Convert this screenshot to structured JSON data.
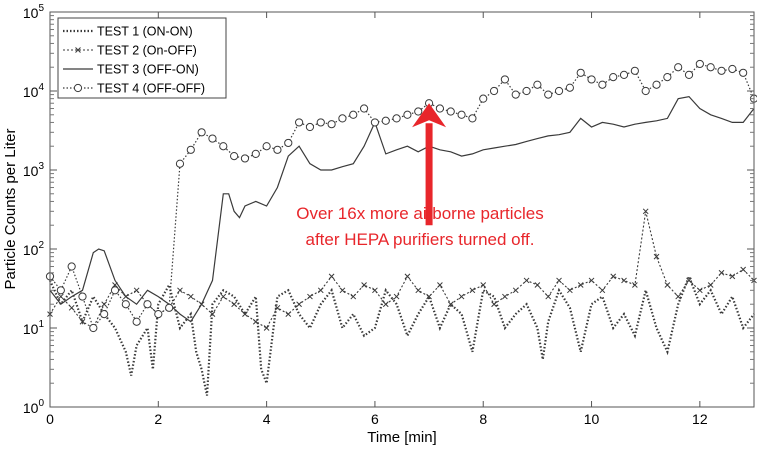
{
  "chart_data": {
    "type": "line",
    "xlabel": "Time [min]",
    "ylabel": "Particle Counts per Liter",
    "xlim": [
      0,
      13
    ],
    "ylim": [
      1,
      100000
    ],
    "yscale": "log",
    "grid": false,
    "legend_position": "top-left",
    "x_ticks": [
      "0",
      "2",
      "4",
      "6",
      "8",
      "10",
      "12"
    ],
    "y_ticks": [
      {
        "base": "10",
        "exp": "0"
      },
      {
        "base": "10",
        "exp": "1"
      },
      {
        "base": "10",
        "exp": "2"
      },
      {
        "base": "10",
        "exp": "3"
      },
      {
        "base": "10",
        "exp": "4"
      },
      {
        "base": "10",
        "exp": "5"
      }
    ],
    "annotation": {
      "lines": [
        "Over 16x more airborne particles",
        "after HEPA purifiers turned off."
      ],
      "color": "#e8262b",
      "arrow_x": 7.0,
      "arrow_y_from": 200,
      "arrow_y_to": 7000
    },
    "series": [
      {
        "name": "TEST 1 (ON-ON)",
        "style": "dotted",
        "x": [
          0.0,
          0.2,
          0.4,
          0.6,
          0.8,
          1.0,
          1.2,
          1.4,
          1.5,
          1.6,
          1.8,
          1.9,
          2.0,
          2.2,
          2.4,
          2.6,
          2.7,
          2.8,
          2.9,
          3.0,
          3.2,
          3.4,
          3.6,
          3.8,
          3.9,
          4.0,
          4.2,
          4.4,
          4.6,
          4.8,
          5.0,
          5.2,
          5.4,
          5.6,
          5.8,
          6.0,
          6.2,
          6.4,
          6.6,
          6.8,
          7.0,
          7.2,
          7.4,
          7.6,
          7.8,
          8.0,
          8.2,
          8.4,
          8.6,
          8.8,
          9.0,
          9.1,
          9.2,
          9.4,
          9.6,
          9.8,
          10.0,
          10.2,
          10.4,
          10.6,
          10.8,
          11.0,
          11.2,
          11.4,
          11.6,
          11.8,
          12.0,
          12.2,
          12.4,
          12.6,
          12.8,
          13.0
        ],
        "y": [
          40,
          20,
          30,
          12,
          25,
          15,
          10,
          5,
          2.5,
          6,
          10,
          3,
          20,
          35,
          10,
          15,
          5,
          3,
          1.4,
          20,
          30,
          25,
          15,
          25,
          3,
          2,
          25,
          30,
          15,
          10,
          20,
          30,
          10,
          15,
          8,
          10,
          30,
          20,
          8,
          15,
          25,
          10,
          20,
          15,
          5,
          30,
          25,
          10,
          15,
          20,
          10,
          4,
          12,
          30,
          18,
          5,
          20,
          25,
          10,
          15,
          8,
          30,
          10,
          5,
          20,
          45,
          20,
          30,
          15,
          25,
          10,
          15
        ]
      },
      {
        "name": "TEST 2 (On-OFF)",
        "style": "dashed-x",
        "x": [
          0.0,
          0.2,
          0.4,
          0.6,
          0.8,
          1.0,
          1.2,
          1.4,
          1.6,
          1.8,
          2.0,
          2.2,
          2.4,
          2.6,
          2.8,
          3.0,
          3.2,
          3.4,
          3.6,
          3.8,
          4.0,
          4.2,
          4.4,
          4.6,
          4.8,
          5.0,
          5.2,
          5.4,
          5.6,
          5.8,
          6.0,
          6.2,
          6.4,
          6.6,
          6.8,
          7.0,
          7.2,
          7.4,
          7.6,
          7.8,
          8.0,
          8.2,
          8.4,
          8.6,
          8.8,
          9.0,
          9.2,
          9.4,
          9.6,
          9.8,
          10.0,
          10.2,
          10.4,
          10.6,
          10.8,
          11.0,
          11.2,
          11.4,
          11.6,
          11.8,
          12.0,
          12.2,
          12.4,
          12.6,
          12.8,
          13.0
        ],
        "y": [
          15,
          25,
          18,
          12,
          10,
          20,
          35,
          25,
          30,
          20,
          15,
          18,
          30,
          25,
          20,
          15,
          25,
          20,
          15,
          12,
          10,
          18,
          15,
          20,
          25,
          30,
          45,
          30,
          25,
          35,
          30,
          20,
          25,
          45,
          30,
          25,
          35,
          20,
          25,
          30,
          35,
          20,
          25,
          30,
          40,
          35,
          25,
          40,
          30,
          35,
          40,
          30,
          45,
          40,
          35,
          300,
          80,
          35,
          25,
          40,
          30,
          35,
          50,
          45,
          55,
          40
        ]
      },
      {
        "name": "TEST 3 (OFF-ON)",
        "style": "solid",
        "x": [
          0.0,
          0.2,
          0.4,
          0.6,
          0.8,
          0.9,
          1.0,
          1.2,
          1.4,
          1.6,
          1.8,
          2.0,
          2.2,
          2.4,
          2.6,
          2.8,
          3.0,
          3.2,
          3.3,
          3.4,
          3.5,
          3.6,
          3.8,
          4.0,
          4.2,
          4.4,
          4.6,
          4.8,
          5.0,
          5.2,
          5.4,
          5.6,
          5.8,
          6.0,
          6.2,
          6.4,
          6.6,
          6.8,
          7.0,
          7.2,
          7.4,
          7.6,
          7.8,
          8.0,
          8.2,
          8.4,
          8.6,
          8.8,
          9.0,
          9.2,
          9.4,
          9.6,
          9.8,
          10.0,
          10.2,
          10.4,
          10.6,
          10.8,
          11.0,
          11.2,
          11.4,
          11.6,
          11.8,
          12.0,
          12.2,
          12.4,
          12.6,
          12.8,
          13.0
        ],
        "y": [
          30,
          20,
          25,
          30,
          90,
          100,
          95,
          40,
          25,
          20,
          30,
          25,
          20,
          15,
          12,
          20,
          40,
          500,
          500,
          300,
          250,
          350,
          400,
          350,
          600,
          1500,
          2000,
          1200,
          1000,
          1000,
          1100,
          1200,
          2000,
          4000,
          1600,
          1800,
          2000,
          1700,
          2000,
          1800,
          1700,
          1500,
          1600,
          1800,
          1900,
          2000,
          2100,
          2300,
          2500,
          2700,
          2800,
          3000,
          4500,
          3500,
          4000,
          3800,
          3500,
          3800,
          4000,
          4200,
          4500,
          8000,
          8500,
          6000,
          5000,
          4500,
          4000,
          4000,
          6000
        ]
      },
      {
        "name": "TEST 4 (OFF-OFF)",
        "style": "dotted-circle",
        "x": [
          0.0,
          0.2,
          0.4,
          0.6,
          0.8,
          1.0,
          1.2,
          1.4,
          1.6,
          1.8,
          2.0,
          2.2,
          2.4,
          2.6,
          2.8,
          3.0,
          3.2,
          3.4,
          3.6,
          3.8,
          4.0,
          4.2,
          4.4,
          4.6,
          4.8,
          5.0,
          5.2,
          5.4,
          5.6,
          5.8,
          6.0,
          6.2,
          6.4,
          6.6,
          6.8,
          7.0,
          7.2,
          7.4,
          7.6,
          7.8,
          8.0,
          8.2,
          8.4,
          8.6,
          8.8,
          9.0,
          9.2,
          9.4,
          9.6,
          9.8,
          10.0,
          10.2,
          10.4,
          10.6,
          10.8,
          11.0,
          11.2,
          11.4,
          11.6,
          11.8,
          12.0,
          12.2,
          12.4,
          12.6,
          12.8,
          13.0
        ],
        "y": [
          45,
          30,
          60,
          25,
          10,
          15,
          30,
          20,
          12,
          20,
          15,
          18,
          1200,
          1800,
          3000,
          2500,
          2000,
          1500,
          1400,
          1600,
          2000,
          1800,
          2200,
          4000,
          3500,
          4000,
          3800,
          4500,
          5000,
          6000,
          4000,
          4200,
          4500,
          5000,
          5500,
          7000,
          6000,
          5500,
          5000,
          4500,
          8000,
          10000,
          14000,
          9000,
          10000,
          12000,
          9000,
          10000,
          11000,
          17000,
          14000,
          12000,
          15000,
          16000,
          18000,
          10000,
          12000,
          15000,
          20000,
          16000,
          22000,
          20000,
          18000,
          19000,
          17000,
          8000
        ]
      }
    ]
  }
}
